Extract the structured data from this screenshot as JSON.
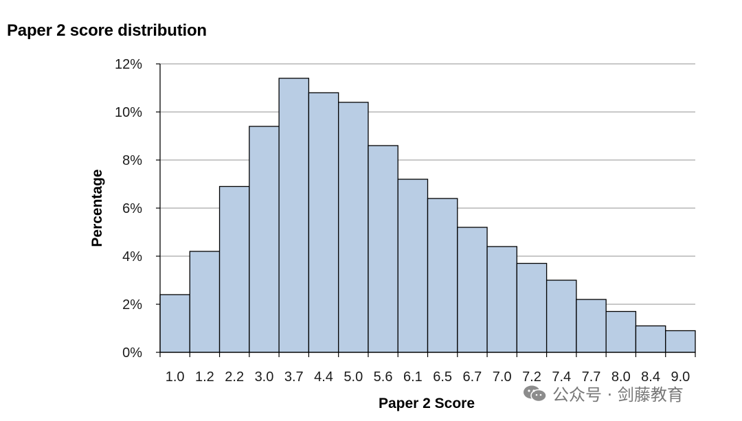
{
  "chart_data": {
    "type": "bar",
    "title": "Paper 2 score distribution",
    "xlabel": "Paper 2 Score",
    "ylabel": "Percentage",
    "ylim": [
      0,
      12
    ],
    "y_tick_step": 2,
    "y_tick_labels": [
      "0%",
      "2%",
      "4%",
      "6%",
      "8%",
      "10%",
      "12%"
    ],
    "grid": true,
    "categories": [
      "1.0",
      "1.2",
      "2.2",
      "3.0",
      "3.7",
      "4.4",
      "5.0",
      "5.6",
      "6.1",
      "6.5",
      "6.7",
      "7.0",
      "7.2",
      "7.4",
      "7.7",
      "8.0",
      "8.4",
      "9.0"
    ],
    "values": [
      2.4,
      4.2,
      6.9,
      9.4,
      11.4,
      10.8,
      10.4,
      8.6,
      7.2,
      6.4,
      5.2,
      4.4,
      3.7,
      3.0,
      2.2,
      1.7,
      1.1,
      0.9
    ],
    "bar_color": "#b9cde4",
    "bar_edge_color": "#000000",
    "grid_color": "#a6a6a6"
  },
  "watermark": {
    "text": "公众号 · 剑藤教育",
    "icon": "wechat-icon"
  }
}
